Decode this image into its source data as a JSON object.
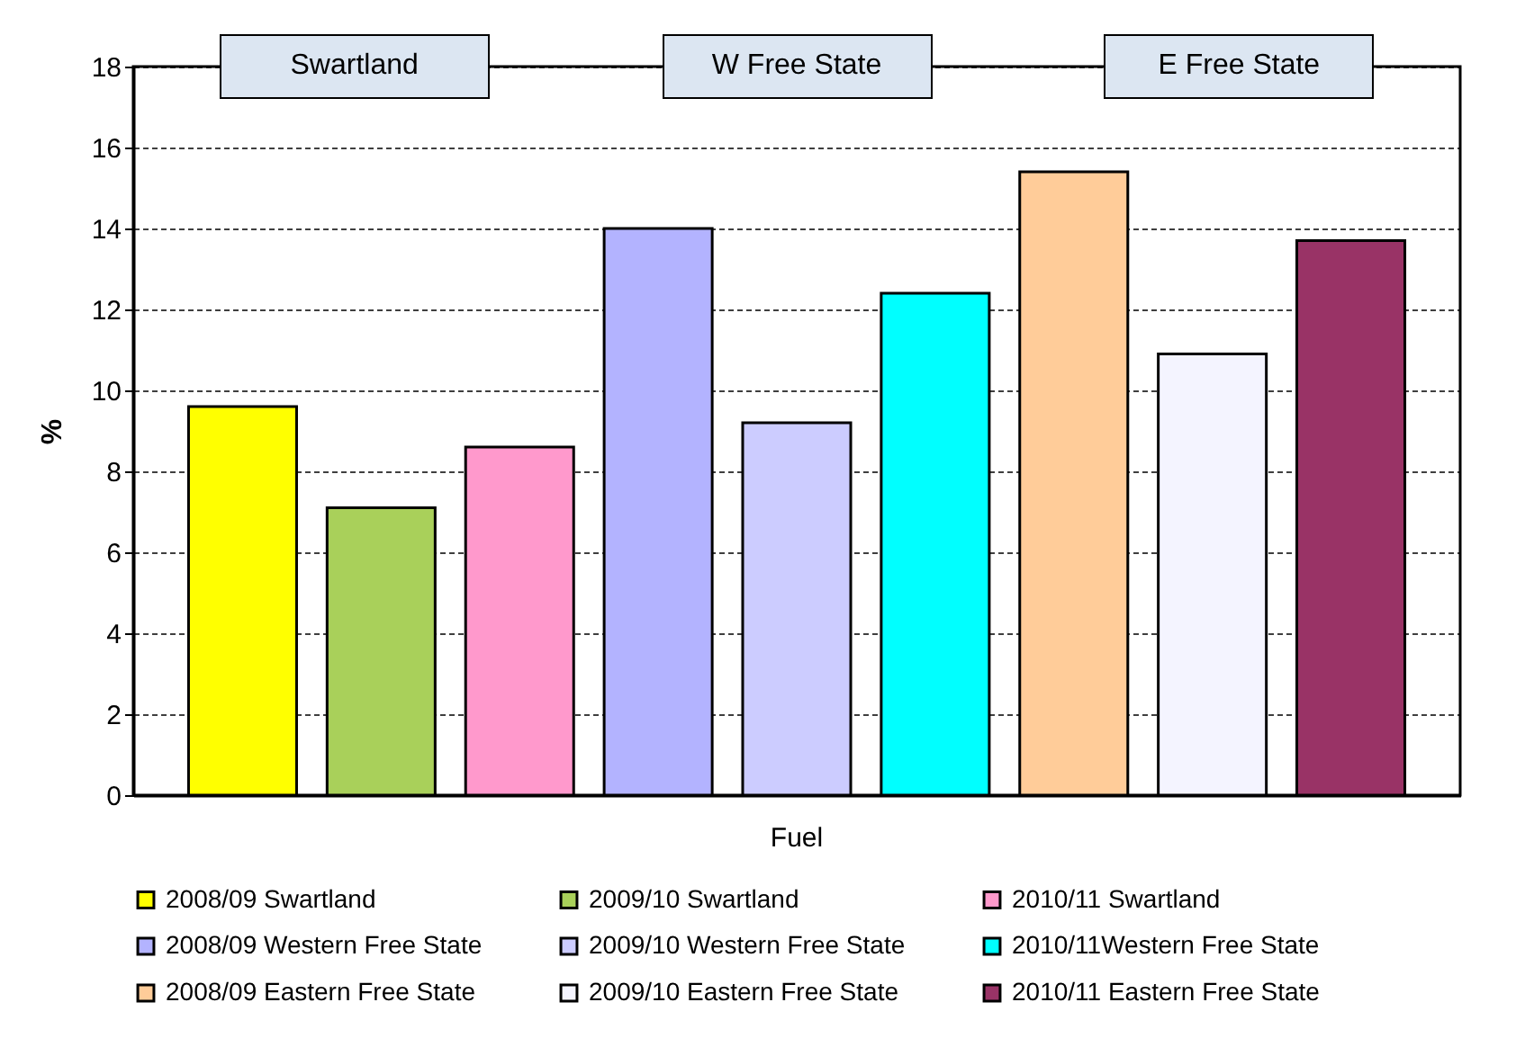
{
  "chart_data": {
    "type": "bar",
    "ylabel": "%",
    "categories": [
      "Fuel"
    ],
    "series": [
      {
        "name": "2008/09 Swartland",
        "color": "#ffff00",
        "values": [
          9.6
        ]
      },
      {
        "name": "2009/10 Swartland",
        "color": "#a9d05a",
        "values": [
          7.1
        ]
      },
      {
        "name": "2010/11 Swartland",
        "color": "#ff99cc",
        "values": [
          8.6
        ]
      },
      {
        "name": "2008/09 Western Free State",
        "color": "#b3b3ff",
        "values": [
          14.0
        ]
      },
      {
        "name": "2009/10 Western Free State",
        "color": "#ccccff",
        "values": [
          9.2
        ]
      },
      {
        "name": "2010/11Western Free State",
        "color": "#00ffff",
        "values": [
          12.4
        ]
      },
      {
        "name": "2008/09 Eastern Free State",
        "color": "#ffcc99",
        "values": [
          15.4
        ]
      },
      {
        "name": "2009/10 Eastern Free State",
        "color": "#f4f4ff",
        "values": [
          10.9
        ]
      },
      {
        "name": "2010/11 Eastern Free State",
        "color": "#993366",
        "values": [
          13.7
        ]
      }
    ],
    "annotations": [
      "Swartland",
      "W Free State",
      "E Free State"
    ],
    "ylim": [
      0,
      18
    ],
    "yticks": [
      0,
      2,
      4,
      6,
      8,
      10,
      12,
      14,
      16,
      18
    ],
    "grid": "y",
    "legend": "bottom"
  }
}
